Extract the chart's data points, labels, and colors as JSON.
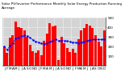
{
  "title": "Solar PV/Inverter Performance Monthly Solar Energy Production Running Average",
  "bar_values": [
    200,
    130,
    290,
    320,
    460,
    400,
    390,
    370,
    300,
    220,
    150,
    130,
    160,
    110,
    260,
    330,
    440,
    410,
    420,
    55,
    300,
    230,
    180,
    140,
    175,
    135,
    275,
    365,
    395,
    430,
    415,
    395,
    320,
    250,
    200,
    370
  ],
  "running_avg": [
    200,
    165,
    207,
    235,
    280,
    295,
    307,
    315,
    308,
    292,
    270,
    252,
    242,
    231,
    228,
    233,
    248,
    261,
    274,
    260,
    261,
    259,
    257,
    249,
    245,
    238,
    237,
    243,
    248,
    258,
    265,
    272,
    272,
    271,
    271,
    274
  ],
  "bar_color": "#FF0000",
  "line_color": "#0000FF",
  "bg_color": "#FFFFFF",
  "plot_bg": "#D4D4D4",
  "grid_color": "#FFFFFF",
  "ylim": [
    0,
    500
  ],
  "yticks": [
    100,
    200,
    300,
    400,
    500
  ],
  "title_fontsize": 3.0,
  "tick_fontsize": 3.0
}
